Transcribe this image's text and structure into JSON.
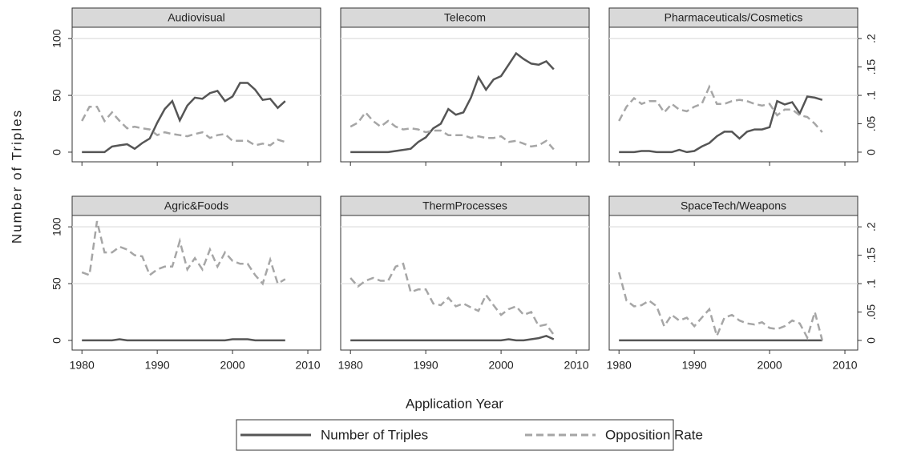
{
  "ylabel": "Number of Triples",
  "xlabel": "Application Year",
  "chart_data": [
    {
      "type": "line",
      "title": "Audiovisual",
      "x": [
        1980,
        1981,
        1982,
        1983,
        1984,
        1985,
        1986,
        1987,
        1988,
        1989,
        1990,
        1991,
        1992,
        1993,
        1994,
        1995,
        1996,
        1997,
        1998,
        1999,
        2000,
        2001,
        2002,
        2003,
        2004,
        2005,
        2006,
        2007
      ],
      "series": [
        {
          "name": "Number of Triples",
          "color": "#555555",
          "values": [
            0,
            0,
            0,
            0,
            5,
            6,
            7,
            3,
            8,
            12,
            26,
            38,
            45,
            28,
            41,
            48,
            47,
            52,
            54,
            45,
            49,
            61,
            61,
            55,
            46,
            47,
            39,
            45
          ]
        },
        {
          "name": "Opposition Rate",
          "color": "#a6a6a6",
          "axis": "y2",
          "values": [
            0.055,
            0.08,
            0.08,
            0.055,
            0.07,
            0.055,
            0.042,
            0.045,
            0.042,
            0.04,
            0.03,
            0.035,
            0.032,
            0.03,
            0.028,
            0.032,
            0.035,
            0.025,
            0.03,
            0.032,
            0.02,
            0.02,
            0.02,
            0.012,
            0.015,
            0.012,
            0.022,
            0.018
          ]
        }
      ],
      "xlim": [
        1978.7,
        2011.7
      ],
      "xticks": [
        1980,
        1990,
        2000,
        2010
      ],
      "ylim": [
        -8.5,
        110
      ],
      "yticks": [
        0,
        50,
        100
      ],
      "y2lim": [
        -0.017,
        0.22
      ],
      "y2ticks": [
        0,
        {
          "value": 0.05,
          "label": ".05"
        },
        {
          "value": 0.1,
          "label": ".1"
        },
        {
          "value": 0.15,
          "label": ".15"
        },
        {
          "value": 0.2,
          "label": ".2"
        }
      ],
      "grid": true
    },
    {
      "type": "line",
      "title": "Telecom",
      "x": [
        1980,
        1981,
        1982,
        1983,
        1984,
        1985,
        1986,
        1987,
        1988,
        1989,
        1990,
        1991,
        1992,
        1993,
        1994,
        1995,
        1996,
        1997,
        1998,
        1999,
        2000,
        2001,
        2002,
        2003,
        2004,
        2005,
        2006,
        2007
      ],
      "series": [
        {
          "name": "Number of Triples",
          "color": "#555555",
          "values": [
            0,
            0,
            0,
            0,
            0,
            0,
            1,
            2,
            3,
            9,
            13,
            21,
            25,
            38,
            33,
            35,
            48,
            66,
            55,
            64,
            67,
            77,
            87,
            82,
            78,
            77,
            80,
            73
          ]
        },
        {
          "name": "Opposition Rate",
          "color": "#a6a6a6",
          "axis": "y2",
          "values": [
            0.045,
            0.052,
            0.07,
            0.055,
            0.045,
            0.055,
            0.045,
            0.04,
            0.042,
            0.04,
            0.035,
            0.038,
            0.038,
            0.03,
            0.03,
            0.03,
            0.025,
            0.028,
            0.025,
            0.025,
            0.028,
            0.018,
            0.02,
            0.015,
            0.01,
            0.012,
            0.02,
            0.005
          ]
        }
      ],
      "xlim": [
        1978.7,
        2011.7
      ],
      "xticks": [
        1980,
        1990,
        2000,
        2010
      ],
      "ylim": [
        -8.5,
        110
      ],
      "yticks": [
        0,
        50,
        100
      ],
      "y2lim": [
        -0.017,
        0.22
      ],
      "y2ticks": [
        0,
        {
          "value": 0.05,
          "label": ".05"
        },
        {
          "value": 0.1,
          "label": ".1"
        },
        {
          "value": 0.15,
          "label": ".15"
        },
        {
          "value": 0.2,
          "label": ".2"
        }
      ],
      "grid": true
    },
    {
      "type": "line",
      "title": "Pharmaceuticals/Cosmetics",
      "x": [
        1980,
        1981,
        1982,
        1983,
        1984,
        1985,
        1986,
        1987,
        1988,
        1989,
        1990,
        1991,
        1992,
        1993,
        1994,
        1995,
        1996,
        1997,
        1998,
        1999,
        2000,
        2001,
        2002,
        2003,
        2004,
        2005,
        2006,
        2007
      ],
      "series": [
        {
          "name": "Number of Triples",
          "color": "#555555",
          "values": [
            0,
            0,
            0,
            1,
            1,
            0,
            0,
            0,
            2,
            0,
            1,
            5,
            8,
            14,
            18,
            18,
            12,
            18,
            20,
            20,
            22,
            45,
            42,
            44,
            34,
            49,
            48,
            46
          ]
        },
        {
          "name": "Opposition Rate",
          "color": "#a6a6a6",
          "axis": "y2",
          "values": [
            0.055,
            0.08,
            0.095,
            0.085,
            0.09,
            0.09,
            0.07,
            0.085,
            0.075,
            0.072,
            0.08,
            0.085,
            0.115,
            0.085,
            0.085,
            0.09,
            0.092,
            0.09,
            0.085,
            0.082,
            0.085,
            0.065,
            0.075,
            0.075,
            0.065,
            0.062,
            0.05,
            0.035
          ]
        }
      ],
      "xlim": [
        1978.7,
        2011.7
      ],
      "xticks": [
        1980,
        1990,
        2000,
        2010
      ],
      "ylim": [
        -8.5,
        110
      ],
      "yticks": [
        0,
        50,
        100
      ],
      "y2lim": [
        -0.017,
        0.22
      ],
      "y2ticks": [
        0,
        {
          "value": 0.05,
          "label": ".05"
        },
        {
          "value": 0.1,
          "label": ".1"
        },
        {
          "value": 0.15,
          "label": ".15"
        },
        {
          "value": 0.2,
          "label": ".2"
        }
      ],
      "grid": true
    },
    {
      "type": "line",
      "title": "Agric&Foods",
      "x": [
        1980,
        1981,
        1982,
        1983,
        1984,
        1985,
        1986,
        1987,
        1988,
        1989,
        1990,
        1991,
        1992,
        1993,
        1994,
        1995,
        1996,
        1997,
        1998,
        1999,
        2000,
        2001,
        2002,
        2003,
        2004,
        2005,
        2006,
        2007
      ],
      "series": [
        {
          "name": "Number of Triples",
          "color": "#555555",
          "values": [
            0,
            0,
            0,
            0,
            0,
            1,
            0,
            0,
            0,
            0,
            0,
            0,
            0,
            0,
            0,
            0,
            0,
            0,
            0,
            0,
            1,
            1,
            1,
            0,
            0,
            0,
            0,
            0
          ]
        },
        {
          "name": "Opposition Rate",
          "color": "#a6a6a6",
          "axis": "y2",
          "values": [
            0.12,
            0.115,
            0.21,
            0.155,
            0.155,
            0.165,
            0.16,
            0.15,
            0.148,
            0.115,
            0.125,
            0.13,
            0.13,
            0.175,
            0.125,
            0.145,
            0.125,
            0.16,
            0.13,
            0.155,
            0.14,
            0.135,
            0.135,
            0.115,
            0.1,
            0.142,
            0.1,
            0.108
          ]
        }
      ],
      "xlim": [
        1978.7,
        2011.7
      ],
      "xticks": [
        1980,
        1990,
        2000,
        2010
      ],
      "ylim": [
        -8.5,
        110
      ],
      "yticks": [
        0,
        50,
        100
      ],
      "y2lim": [
        -0.017,
        0.22
      ],
      "y2ticks": [
        0,
        {
          "value": 0.05,
          "label": ".05"
        },
        {
          "value": 0.1,
          "label": ".1"
        },
        {
          "value": 0.15,
          "label": ".15"
        },
        {
          "value": 0.2,
          "label": ".2"
        }
      ],
      "grid": true
    },
    {
      "type": "line",
      "title": "ThermProcesses",
      "x": [
        1980,
        1981,
        1982,
        1983,
        1984,
        1985,
        1986,
        1987,
        1988,
        1989,
        1990,
        1991,
        1992,
        1993,
        1994,
        1995,
        1996,
        1997,
        1998,
        1999,
        2000,
        2001,
        2002,
        2003,
        2004,
        2005,
        2006,
        2007
      ],
      "series": [
        {
          "name": "Number of Triples",
          "color": "#555555",
          "values": [
            0,
            0,
            0,
            0,
            0,
            0,
            0,
            0,
            0,
            0,
            0,
            0,
            0,
            0,
            0,
            0,
            0,
            0,
            0,
            0,
            0,
            1,
            0,
            0,
            1,
            2,
            4,
            1
          ]
        },
        {
          "name": "Opposition Rate",
          "color": "#a6a6a6",
          "axis": "y2",
          "values": [
            0.11,
            0.095,
            0.105,
            0.11,
            0.105,
            0.105,
            0.13,
            0.135,
            0.085,
            0.09,
            0.09,
            0.065,
            0.062,
            0.075,
            0.06,
            0.065,
            0.058,
            0.052,
            0.08,
            0.062,
            0.045,
            0.055,
            0.06,
            0.045,
            0.05,
            0.025,
            0.028,
            0.01
          ]
        }
      ],
      "xlim": [
        1978.7,
        2011.7
      ],
      "xticks": [
        1980,
        1990,
        2000,
        2010
      ],
      "ylim": [
        -8.5,
        110
      ],
      "yticks": [
        0,
        50,
        100
      ],
      "y2lim": [
        -0.017,
        0.22
      ],
      "y2ticks": [
        0,
        {
          "value": 0.05,
          "label": ".05"
        },
        {
          "value": 0.1,
          "label": ".1"
        },
        {
          "value": 0.15,
          "label": ".15"
        },
        {
          "value": 0.2,
          "label": ".2"
        }
      ],
      "grid": true
    },
    {
      "type": "line",
      "title": "SpaceTech/Weapons",
      "x": [
        1980,
        1981,
        1982,
        1983,
        1984,
        1985,
        1986,
        1987,
        1988,
        1989,
        1990,
        1991,
        1992,
        1993,
        1994,
        1995,
        1996,
        1997,
        1998,
        1999,
        2000,
        2001,
        2002,
        2003,
        2004,
        2005,
        2006,
        2007
      ],
      "series": [
        {
          "name": "Number of Triples",
          "color": "#555555",
          "values": [
            0,
            0,
            0,
            0,
            0,
            0,
            0,
            0,
            0,
            0,
            0,
            0,
            0,
            0,
            0,
            0,
            0,
            0,
            0,
            0,
            0,
            0,
            0,
            0,
            0,
            0,
            0,
            0
          ]
        },
        {
          "name": "Opposition Rate",
          "color": "#a6a6a6",
          "axis": "y2",
          "values": [
            0.12,
            0.07,
            0.06,
            0.062,
            0.07,
            0.06,
            0.025,
            0.045,
            0.035,
            0.04,
            0.025,
            0.04,
            0.055,
            0.008,
            0.04,
            0.045,
            0.035,
            0.03,
            0.028,
            0.032,
            0.022,
            0.02,
            0.025,
            0.035,
            0.03,
            0.005,
            0.05,
            0
          ]
        }
      ],
      "xlim": [
        1978.7,
        2011.7
      ],
      "xticks": [
        1980,
        1990,
        2000,
        2010
      ],
      "ylim": [
        -8.5,
        110
      ],
      "yticks": [
        0,
        50,
        100
      ],
      "y2lim": [
        -0.017,
        0.22
      ],
      "y2ticks": [
        0,
        {
          "value": 0.05,
          "label": ".05"
        },
        {
          "value": 0.1,
          "label": ".1"
        },
        {
          "value": 0.15,
          "label": ".15"
        },
        {
          "value": 0.2,
          "label": ".2"
        }
      ],
      "grid": true
    }
  ]
}
